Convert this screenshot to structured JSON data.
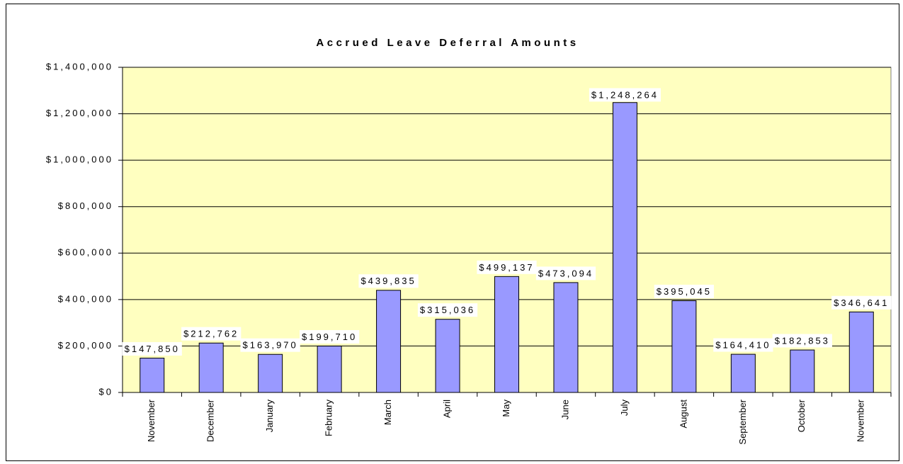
{
  "chart_data": {
    "type": "bar",
    "title": "Accrued Leave Deferral Amounts",
    "categories": [
      "November",
      "December",
      "January",
      "February",
      "March",
      "April",
      "May",
      "June",
      "July",
      "August",
      "September",
      "October",
      "November"
    ],
    "values": [
      147850,
      212762,
      163970,
      199710,
      439835,
      315036,
      499137,
      473094,
      1248264,
      395045,
      164410,
      182853,
      346641
    ],
    "value_labels": [
      "$147,850",
      "$212,762",
      "$163,970",
      "$199,710",
      "$439,835",
      "$315,036",
      "$499,137",
      "$473,094",
      "$1,248,264",
      "$395,045",
      "$164,410",
      "$182,853",
      "$346,641"
    ],
    "color": "#9999FF",
    "ylim": [
      0,
      1400000
    ],
    "yticks": [
      {
        "value": 0,
        "label": "$0"
      },
      {
        "value": 200000,
        "label": "$200,000"
      },
      {
        "value": 400000,
        "label": "$400,000"
      },
      {
        "value": 600000,
        "label": "$600,000"
      },
      {
        "value": 800000,
        "label": "$800,000"
      },
      {
        "value": 1000000,
        "label": "$1,000,000"
      },
      {
        "value": 1200000,
        "label": "$1,200,000"
      },
      {
        "value": 1400000,
        "label": "$1,400,000"
      }
    ],
    "grid": true
  }
}
